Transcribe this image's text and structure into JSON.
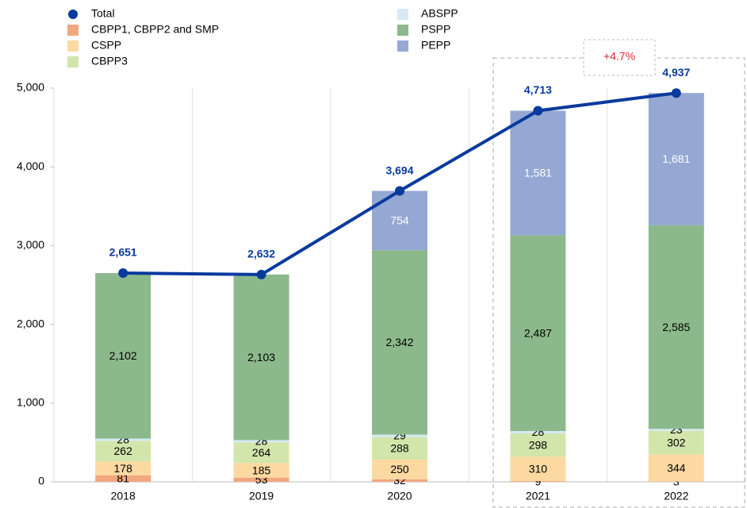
{
  "chart_data": {
    "type": "bar",
    "stacked": true,
    "categories": [
      "2018",
      "2019",
      "2020",
      "2021",
      "2022"
    ],
    "ylim": [
      0,
      5000
    ],
    "yticks": [
      0,
      {
        "value": 1000,
        "label": "1,000"
      },
      {
        "value": 2000,
        "label": "2,000"
      },
      {
        "value": 3000,
        "label": "3,000"
      },
      {
        "value": 4000,
        "label": "4,000"
      },
      {
        "value": 5000,
        "label": "5,000"
      }
    ],
    "annotation": "+4.7%",
    "series": [
      {
        "name": "Total",
        "type": "line",
        "color": "#0a3a9e",
        "values": [
          2651,
          2632,
          3694,
          4713,
          4937
        ],
        "value_labels": [
          "2,651",
          "2,632",
          "3,694",
          "4,713",
          "4,937"
        ]
      },
      {
        "name": "CBPP1, CBPP2 and SMP",
        "color": "#f2a77e",
        "values": [
          81,
          53,
          32,
          9,
          3
        ]
      },
      {
        "name": "CSPP",
        "color": "#fdd9a2",
        "values": [
          178,
          185,
          250,
          310,
          344
        ]
      },
      {
        "name": "CBPP3",
        "color": "#d2e5ab",
        "values": [
          262,
          264,
          288,
          298,
          302
        ]
      },
      {
        "name": "ABSPP",
        "color": "#d5eaf6",
        "values": [
          28,
          28,
          29,
          28,
          23
        ]
      },
      {
        "name": "PSPP",
        "color": "#8cb98b",
        "values": [
          2102,
          2103,
          2342,
          2487,
          2585
        ],
        "value_labels": [
          "2,102",
          "2,103",
          "2,342",
          "2,487",
          "2,585"
        ]
      },
      {
        "name": "PEPP",
        "color": "#94a8d3",
        "label_color": "#ffffff",
        "values": [
          null,
          null,
          754,
          1581,
          1681
        ],
        "value_labels": [
          null,
          null,
          "754",
          "1,581",
          "1,681"
        ]
      }
    ]
  }
}
